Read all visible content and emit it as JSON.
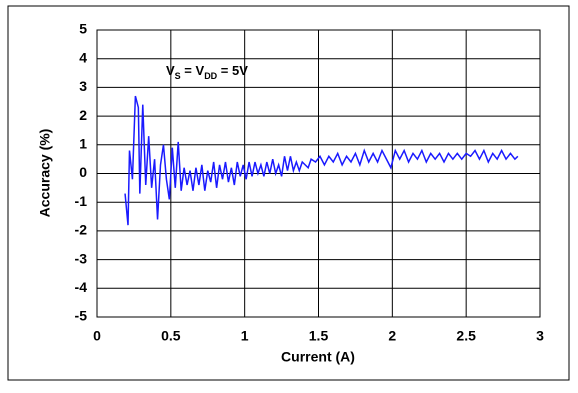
{
  "chart_data": {
    "type": "line",
    "xlabel": "Current (A)",
    "ylabel": "Accuracy (%)",
    "annotation": [
      "V",
      "S",
      " = V",
      "DD",
      " = 5V"
    ],
    "xlim": [
      0,
      3
    ],
    "xticks": [
      0,
      0.5,
      1,
      1.5,
      2,
      2.5,
      3
    ],
    "ylim": [
      -5,
      5
    ],
    "yticks": [
      -5,
      -4,
      -3,
      -2,
      -1,
      0,
      1,
      2,
      3,
      4,
      5
    ],
    "grid": true,
    "x": [
      0.19,
      0.21,
      0.22,
      0.24,
      0.26,
      0.28,
      0.29,
      0.31,
      0.33,
      0.35,
      0.37,
      0.39,
      0.41,
      0.43,
      0.45,
      0.47,
      0.49,
      0.51,
      0.53,
      0.55,
      0.57,
      0.59,
      0.61,
      0.63,
      0.65,
      0.67,
      0.69,
      0.71,
      0.73,
      0.75,
      0.77,
      0.79,
      0.81,
      0.83,
      0.85,
      0.87,
      0.89,
      0.91,
      0.93,
      0.95,
      0.97,
      0.99,
      1.01,
      1.03,
      1.05,
      1.07,
      1.09,
      1.11,
      1.13,
      1.15,
      1.17,
      1.19,
      1.21,
      1.23,
      1.25,
      1.27,
      1.29,
      1.31,
      1.33,
      1.35,
      1.37,
      1.39,
      1.41,
      1.43,
      1.45,
      1.48,
      1.51,
      1.54,
      1.57,
      1.6,
      1.63,
      1.66,
      1.69,
      1.72,
      1.75,
      1.78,
      1.81,
      1.84,
      1.87,
      1.9,
      1.93,
      1.96,
      1.99,
      2.02,
      2.05,
      2.08,
      2.11,
      2.14,
      2.17,
      2.2,
      2.23,
      2.26,
      2.29,
      2.32,
      2.35,
      2.38,
      2.41,
      2.44,
      2.47,
      2.5,
      2.53,
      2.56,
      2.59,
      2.62,
      2.65,
      2.68,
      2.71,
      2.74,
      2.77,
      2.8,
      2.83,
      2.85
    ],
    "series": [
      {
        "color": "#1a1aff",
        "values": [
          -0.7,
          -1.8,
          0.8,
          -0.2,
          2.7,
          2.3,
          -0.7,
          2.4,
          -0.4,
          1.3,
          -0.5,
          0.5,
          -1.6,
          0.3,
          1.0,
          -0.2,
          -0.9,
          0.9,
          -0.5,
          1.1,
          -0.6,
          0.2,
          -0.4,
          0.1,
          -0.6,
          0.2,
          -0.4,
          0.3,
          -0.6,
          0.1,
          -0.3,
          0.4,
          -0.5,
          0.3,
          -0.2,
          0.4,
          -0.3,
          0.2,
          -0.4,
          0.4,
          -0.1,
          0.3,
          -0.2,
          0.4,
          -0.1,
          0.4,
          0.0,
          0.3,
          -0.1,
          0.4,
          0.0,
          0.5,
          0.0,
          0.3,
          -0.1,
          0.6,
          0.1,
          0.6,
          0.1,
          0.4,
          0.1,
          0.4,
          0.3,
          0.2,
          0.5,
          0.4,
          0.6,
          0.3,
          0.6,
          0.4,
          0.7,
          0.3,
          0.6,
          0.4,
          0.7,
          0.3,
          0.8,
          0.4,
          0.7,
          0.4,
          0.8,
          0.5,
          0.2,
          0.8,
          0.5,
          0.8,
          0.4,
          0.7,
          0.5,
          0.8,
          0.4,
          0.7,
          0.5,
          0.7,
          0.4,
          0.7,
          0.5,
          0.7,
          0.5,
          0.7,
          0.6,
          0.8,
          0.5,
          0.8,
          0.4,
          0.7,
          0.5,
          0.8,
          0.5,
          0.7,
          0.5,
          0.6
        ]
      }
    ]
  }
}
